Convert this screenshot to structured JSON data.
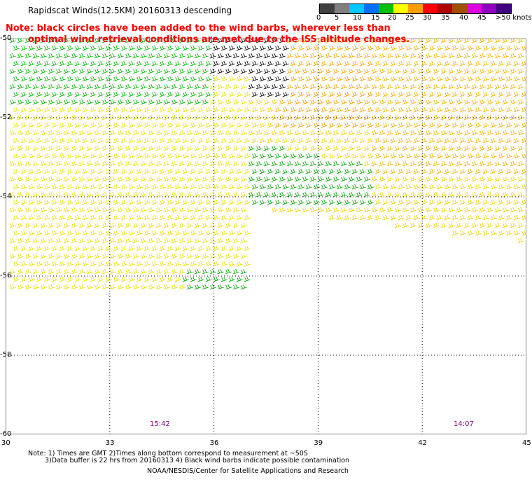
{
  "title": "Rapidscat Winds(12.5KM) 20160313 descending",
  "notes": [
    "Note: black circles have been added to the wind barbs, wherever less than",
    "optimal wind retrieval conditions are met due to the ISS altitude changes."
  ],
  "legend": {
    "labels": [
      "0",
      "5",
      "10",
      "15",
      "20",
      "25",
      "30",
      "35",
      "40",
      "45",
      ">50 knots"
    ],
    "colors": [
      "#404040",
      "#808080",
      "#00c8ff",
      "#0070ff",
      "#00c000",
      "#ffff00",
      "#ffa000",
      "#ff0000",
      "#b00000",
      "#a05000",
      "#e000e0",
      "#9000c0",
      "#400080"
    ]
  },
  "map": {
    "lon_ticks": [
      "30",
      "33",
      "36",
      "39",
      "42",
      "45"
    ],
    "lat_ticks": [
      "-50",
      "-52",
      "-54",
      "-56",
      "-58",
      "-60"
    ],
    "time_labels": [
      "15:42",
      "14:07"
    ]
  },
  "footer": {
    "line1": "Note: 1) Times are GMT 2)Times along bottom correspond to measurement at ~50S",
    "line2": "3)Data buffer is 22 hrs from 20160313 4) Black wind barbs indicate possible contamination",
    "line3": "NOAA/NESDIS/Center for Satellite Applications and Research"
  }
}
